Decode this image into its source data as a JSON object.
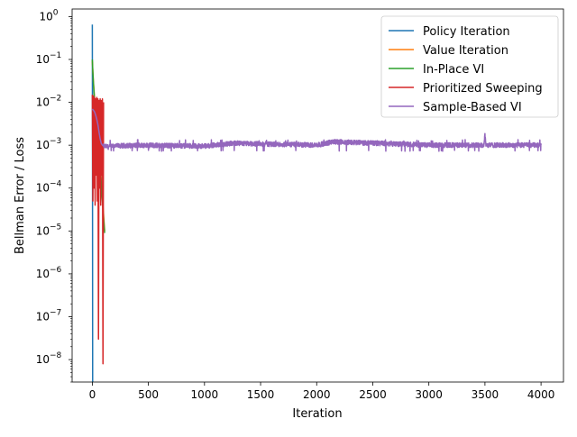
{
  "chart_data": {
    "type": "line",
    "title": "",
    "xlabel": "Iteration",
    "ylabel": "Bellman Error / Loss",
    "xlim": [
      -180,
      4200
    ],
    "ylim": [
      3e-09,
      1.5
    ],
    "yscale": "log",
    "grid": false,
    "legend_position": "top-right",
    "x_ticks": [
      0,
      500,
      1000,
      1500,
      2000,
      2500,
      3000,
      3500,
      4000
    ],
    "x_tick_labels": [
      "0",
      "500",
      "1000",
      "1500",
      "2000",
      "2500",
      "3000",
      "3500",
      "4000"
    ],
    "y_ticks": [
      1e-08,
      1e-07,
      1e-06,
      1e-05,
      0.0001,
      0.001,
      0.01,
      0.1,
      1
    ],
    "y_tick_exponents": [
      "-8",
      "-7",
      "-6",
      "-5",
      "-4",
      "-3",
      "-2",
      "-1",
      "0"
    ],
    "y_tick_base": "10",
    "series": [
      {
        "name": "Policy Iteration",
        "color": "#1f77b4",
        "x": [
          0,
          1,
          2,
          3
        ],
        "y": [
          0.65,
          0.01,
          1e-05,
          3e-09
        ]
      },
      {
        "name": "Value Iteration",
        "color": "#ff7f0e",
        "x": [
          0,
          5,
          10,
          20,
          30,
          40,
          50,
          60,
          70,
          80,
          90,
          100,
          110
        ],
        "y": [
          0.09,
          0.05,
          0.03,
          0.012,
          0.006,
          0.003,
          0.0015,
          0.0008,
          0.0004,
          0.00015,
          6e-05,
          2.5e-05,
          1e-05
        ]
      },
      {
        "name": "In-Place VI",
        "color": "#2ca02c",
        "x": [
          0,
          5,
          10,
          20,
          30,
          40,
          50,
          60,
          70,
          80,
          90,
          100,
          110
        ],
        "y": [
          0.1,
          0.05,
          0.028,
          0.011,
          0.0055,
          0.0028,
          0.0014,
          0.0007,
          0.00035,
          0.00013,
          5e-05,
          2e-05,
          9e-06
        ]
      },
      {
        "name": "Prioritized Sweeping",
        "color": "#d62728",
        "x": [
          0,
          5,
          10,
          15,
          20,
          25,
          30,
          35,
          40,
          45,
          50,
          55,
          60,
          65,
          70,
          75,
          80,
          85,
          90,
          95,
          100
        ],
        "y": [
          0.015,
          5e-05,
          0.014,
          0.0001,
          0.013,
          4e-05,
          0.012,
          0.0002,
          0.013,
          5e-05,
          0.012,
          3e-08,
          0.011,
          0.0001,
          0.012,
          4e-05,
          0.011,
          0.0002,
          0.012,
          8e-09,
          0.01
        ]
      },
      {
        "name": "Sample-Based VI",
        "color": "#9467bd",
        "x": [
          0,
          10,
          20,
          30,
          40,
          50,
          60,
          70,
          80,
          90,
          100,
          150,
          200,
          400,
          1000,
          1250,
          2000,
          2150,
          3000,
          3490,
          3500,
          3510,
          4000
        ],
        "y": [
          0.007,
          0.0065,
          0.006,
          0.005,
          0.004,
          0.003,
          0.002,
          0.0014,
          0.0011,
          0.001,
          0.00095,
          0.0009,
          0.00095,
          0.001,
          0.00095,
          0.0011,
          0.001,
          0.0012,
          0.001,
          0.001,
          0.0017,
          0.001,
          0.001
        ],
        "noise_band": [
          0.0008,
          0.00125
        ]
      }
    ]
  }
}
